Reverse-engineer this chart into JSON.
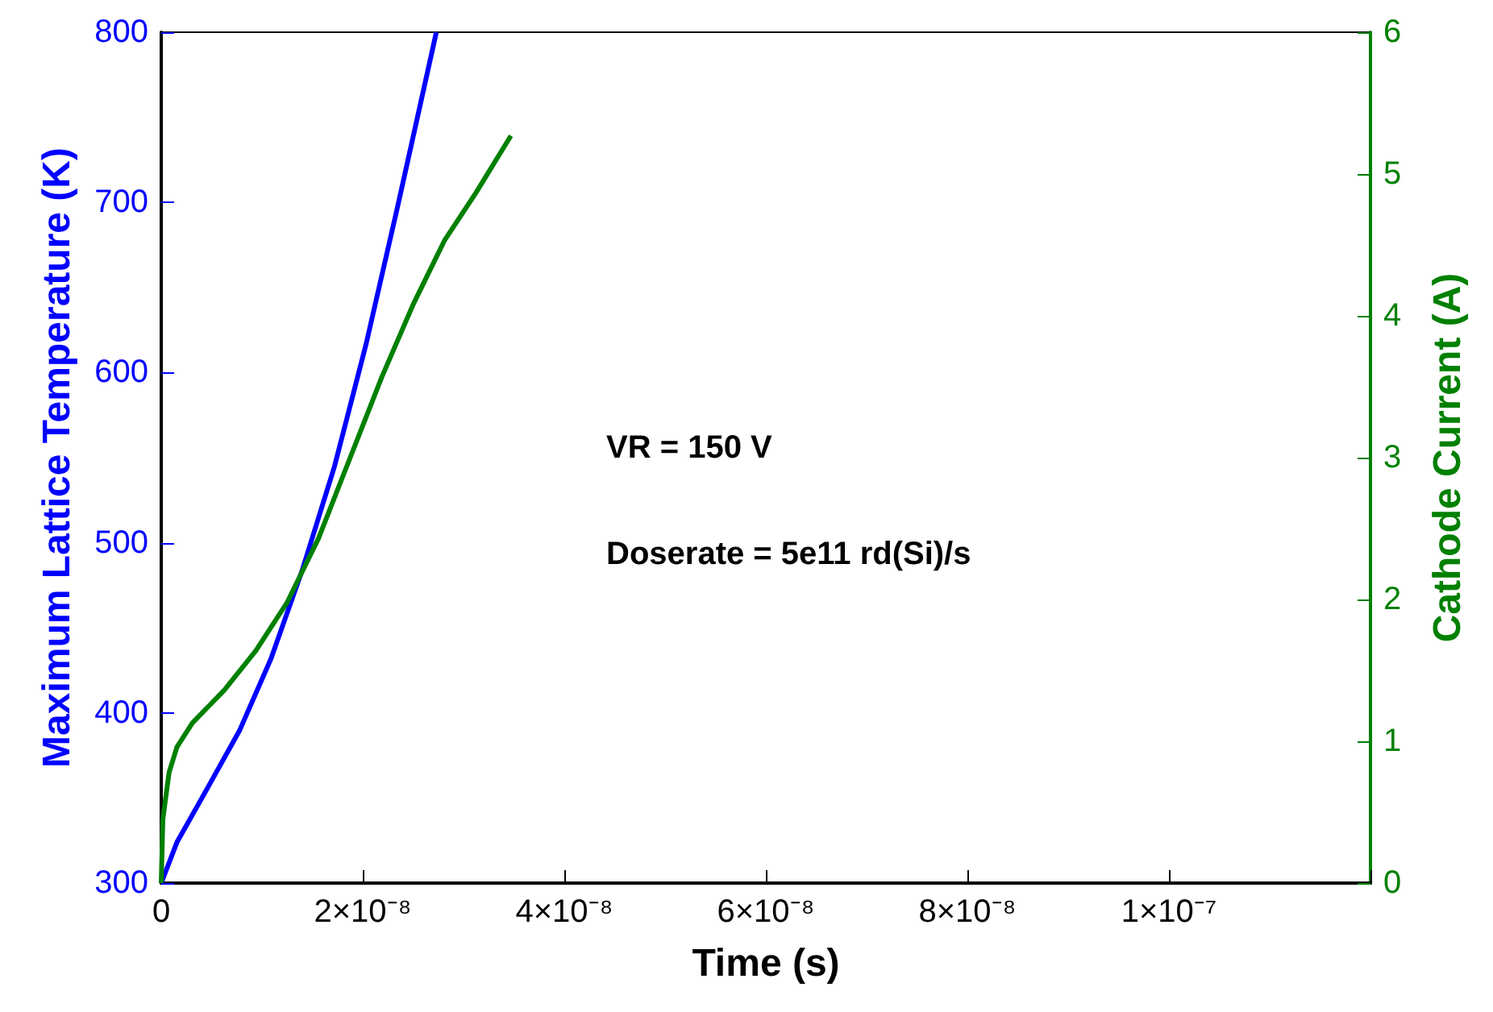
{
  "chart_data": {
    "type": "line",
    "xlabel": "Time (s)",
    "ylabel": "Maximum Lattice Temperature (K)",
    "y2label": "Cathode Current (A)",
    "annotations": [
      "VR = 150 V",
      "Doserate = 5e11 rd(Si)/s"
    ],
    "xlim": [
      0,
      1.2e-07
    ],
    "xticks": [
      0,
      {
        "value": 2e-08,
        "label": "2×10⁻⁸"
      },
      {
        "value": 4e-08,
        "label": "4×10⁻⁸"
      },
      {
        "value": 6e-08,
        "label": "6×10⁻⁸"
      },
      {
        "value": 8e-08,
        "label": "8×10⁻⁸"
      },
      {
        "value": 1e-07,
        "label": "1×10⁻⁷"
      }
    ],
    "ylim": [
      300,
      800
    ],
    "yticks": [
      300,
      400,
      500,
      600,
      700,
      800
    ],
    "y2lim": [
      0,
      6
    ],
    "y2ticks": [
      0,
      1,
      2,
      3,
      4,
      5,
      6
    ],
    "marker": "none",
    "line_style": "solid",
    "series": [
      {
        "color": "#0000ff",
        "x": [
          0,
          1.56e-09,
          4.7e-09,
          7.8e-09,
          1.09e-08,
          1.4e-08,
          1.72e-08,
          2.03e-08,
          2.34e-08,
          2.73e-08
        ],
        "values": [
          300,
          324,
          357,
          390,
          432,
          484,
          545,
          616,
          696,
          800
        ]
      },
      {
        "color": "#008000",
        "axis": "y2",
        "x": [
          0,
          1.6e-10,
          7.8e-10,
          1.56e-09,
          3.1e-09,
          6.25e-09,
          9.4e-09,
          1.25e-08,
          1.56e-08,
          1.875e-08,
          2.19e-08,
          2.5e-08,
          2.81e-08,
          3.125e-08,
          3.47e-08
        ],
        "values": [
          0,
          0.45,
          0.78,
          0.96,
          1.13,
          1.36,
          1.64,
          1.98,
          2.43,
          3.0,
          3.57,
          4.08,
          4.53,
          4.87,
          5.27
        ]
      }
    ]
  }
}
